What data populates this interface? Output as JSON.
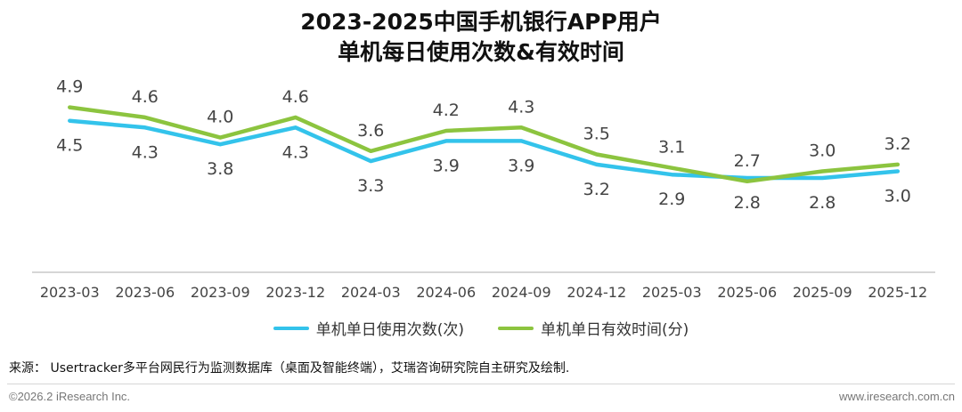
{
  "title_line1": "2023-2025中国手机银行APP用户",
  "title_line2": "单机每日使用次数&有效时间",
  "chart_data": {
    "type": "line",
    "categories": [
      "2023-03",
      "2023-06",
      "2023-09",
      "2023-12",
      "2024-03",
      "2024-06",
      "2024-09",
      "2024-12",
      "2025-03",
      "2025-06",
      "2025-09",
      "2025-12"
    ],
    "series": [
      {
        "name": "单机单日使用次数(次)",
        "color": "#33c3eb",
        "label_position": "below",
        "values": [
          4.5,
          4.3,
          3.8,
          4.3,
          3.3,
          3.9,
          3.9,
          3.2,
          2.9,
          2.8,
          2.8,
          3.0
        ]
      },
      {
        "name": "单机单日有效时间(分)",
        "color": "#8cc43f",
        "label_position": "above",
        "values": [
          4.9,
          4.6,
          4.0,
          4.6,
          3.6,
          4.2,
          4.3,
          3.5,
          3.1,
          2.7,
          3.0,
          3.2
        ]
      }
    ],
    "ylim": [
      0,
      6.5
    ],
    "grid": false,
    "legend_placement": "bottom"
  },
  "source_text": "来源： Usertracker多平台网民行为监测数据库（桌面及智能终端），艾瑞咨询研究院自主研究及绘制.",
  "footer_left": "©2026.2 iResearch Inc.",
  "footer_right": "www.iresearch.com.cn"
}
